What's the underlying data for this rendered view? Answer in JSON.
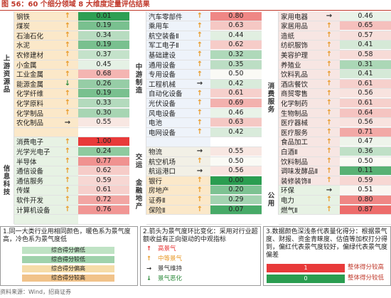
{
  "title": "图 56：60 个细分领域 8 大维度定量评估结果",
  "source": "资料来源：Wind，招商证券",
  "colors": {
    "score_scale": {
      "low": "#2a9d50",
      "high": "#e83a3a"
    },
    "arrow_up": "#e89a2a",
    "arrow_right": "#333333",
    "arrow_down": "#2e8b3d"
  },
  "panels": [
    {
      "groups": [
        {
          "label": "上\n游\n资\n源\n品",
          "rows": 13
        },
        {
          "label": "信\n息\n科\n技",
          "rows": 9
        }
      ],
      "rows": [
        {
          "name": "钢铁",
          "arrow": "up",
          "score": "0.01",
          "v": 0.01
        },
        {
          "name": "煤炭",
          "arrow": "up",
          "score": "0.19",
          "v": 0.19
        },
        {
          "name": "石油石化",
          "arrow": "up",
          "score": "0.34",
          "v": 0.34
        },
        {
          "name": "水泥",
          "arrow": "up",
          "score": "0.19",
          "v": 0.19
        },
        {
          "name": "农修建材",
          "arrow": "up",
          "score": "0.37",
          "v": 0.37
        },
        {
          "name": "小金属",
          "arrow": "up",
          "score": "0.45",
          "v": 0.45
        },
        {
          "name": "工业金属",
          "arrow": "up",
          "score": "0.68",
          "v": 0.68
        },
        {
          "name": "能源金属",
          "arrow": "down",
          "score": "0.26",
          "v": 0.26
        },
        {
          "name": "化学纤维",
          "arrow": "up",
          "score": "0.19",
          "v": 0.19
        },
        {
          "name": "化学原料",
          "arrow": "up",
          "score": "0.33",
          "v": 0.33
        },
        {
          "name": "化学制品",
          "arrow": "up",
          "score": "0.30",
          "v": 0.3
        },
        {
          "name": "农化制品",
          "arrow": "right",
          "score": "0.55",
          "v": 0.55
        },
        {
          "name": "",
          "arrow": "",
          "score": "",
          "v": null
        },
        {
          "name": "消费电子",
          "arrow": "up",
          "score": "1.00",
          "v": 1.0
        },
        {
          "name": "光学光电子",
          "arrow": "up",
          "score": "0.24",
          "v": 0.24
        },
        {
          "name": "半导体",
          "arrow": "up",
          "score": "0.77",
          "v": 0.77
        },
        {
          "name": "通信设备",
          "arrow": "up",
          "score": "0.62",
          "v": 0.62
        },
        {
          "name": "通信服务",
          "arrow": "up",
          "score": "0.59",
          "v": 0.59
        },
        {
          "name": "传媒",
          "arrow": "up",
          "score": "0.61",
          "v": 0.61
        },
        {
          "name": "软件开发",
          "arrow": "up",
          "score": "0.72",
          "v": 0.72
        },
        {
          "name": "计算机设备",
          "arrow": "up",
          "score": "0.76",
          "v": 0.76
        },
        {
          "name": "",
          "arrow": "",
          "score": "",
          "v": null
        }
      ]
    },
    {
      "groups": [
        {
          "label": "中\n游\n制\n造",
          "rows": 14
        },
        {
          "label": "交\n运",
          "rows": 3
        },
        {
          "label": "金\n融\n地\n产",
          "rows": 4
        }
      ],
      "rows": [
        {
          "name": "汽车零部件",
          "arrow": "up",
          "score": "0.80",
          "v": 0.8
        },
        {
          "name": "乘用车",
          "arrow": "up",
          "score": "0.63",
          "v": 0.63
        },
        {
          "name": "航空装备Ⅱ",
          "arrow": "up",
          "score": "0.44",
          "v": 0.44
        },
        {
          "name": "军工电子Ⅱ",
          "arrow": "up",
          "score": "0.62",
          "v": 0.62
        },
        {
          "name": "基础建设",
          "arrow": "up",
          "score": "0.32",
          "v": 0.32
        },
        {
          "name": "通用设备",
          "arrow": "up",
          "score": "0.35",
          "v": 0.35
        },
        {
          "name": "专用设备",
          "arrow": "up",
          "score": "0.50",
          "v": 0.5
        },
        {
          "name": "工程机械",
          "arrow": "right",
          "score": "0.42",
          "v": 0.42
        },
        {
          "name": "自动化设备",
          "arrow": "up",
          "score": "0.61",
          "v": 0.61
        },
        {
          "name": "光伏设备",
          "arrow": "up",
          "score": "0.69",
          "v": 0.69
        },
        {
          "name": "风电设备",
          "arrow": "up",
          "score": "0.46",
          "v": 0.46
        },
        {
          "name": "电池",
          "arrow": "up",
          "score": "0.63",
          "v": 0.63
        },
        {
          "name": "电网设备",
          "arrow": "up",
          "score": "0.42",
          "v": 0.42
        },
        {
          "name": "",
          "arrow": "",
          "score": "",
          "v": null
        },
        {
          "name": "物流",
          "arrow": "right",
          "score": "0.55",
          "v": 0.55
        },
        {
          "name": "航空机场",
          "arrow": "up",
          "score": "0.50",
          "v": 0.5
        },
        {
          "name": "航运港口",
          "arrow": "right",
          "score": "0.56",
          "v": 0.56
        },
        {
          "name": "银行",
          "arrow": "up",
          "score": "0.00",
          "v": 0.0
        },
        {
          "name": "房地产",
          "arrow": "up",
          "score": "0.20",
          "v": 0.2
        },
        {
          "name": "证券Ⅱ",
          "arrow": "up",
          "score": "0.29",
          "v": 0.29
        },
        {
          "name": "保险Ⅱ",
          "arrow": "up",
          "score": "0.07",
          "v": 0.07
        },
        {
          "name": "",
          "arrow": "",
          "score": "",
          "v": null
        }
      ]
    },
    {
      "groups": [
        {
          "label": "消\n费\n服\n务",
          "rows": 18
        },
        {
          "label": "公\n用",
          "rows": 3
        }
      ],
      "rows": [
        {
          "name": "家用电器",
          "arrow": "right",
          "score": "0.46",
          "v": 0.46
        },
        {
          "name": "家居用品",
          "arrow": "up",
          "score": "0.65",
          "v": 0.65
        },
        {
          "name": "造纸",
          "arrow": "up",
          "score": "0.57",
          "v": 0.57
        },
        {
          "name": "纺织服饰",
          "arrow": "up",
          "score": "0.41",
          "v": 0.41
        },
        {
          "name": "美容护理",
          "arrow": "up",
          "score": "0.58",
          "v": 0.58
        },
        {
          "name": "养殖业",
          "arrow": "up",
          "score": "0.31",
          "v": 0.31
        },
        {
          "name": "饮料乳品",
          "arrow": "up",
          "score": "0.41",
          "v": 0.41
        },
        {
          "name": "酒店餐饮",
          "arrow": "up",
          "score": "0.61",
          "v": 0.61
        },
        {
          "name": "商贸零售",
          "arrow": "up",
          "score": "0.56",
          "v": 0.56
        },
        {
          "name": "化学制药",
          "arrow": "up",
          "score": "0.61",
          "v": 0.61
        },
        {
          "name": "生物制品",
          "arrow": "up",
          "score": "0.64",
          "v": 0.64
        },
        {
          "name": "医疗器械",
          "arrow": "up",
          "score": "0.56",
          "v": 0.56
        },
        {
          "name": "医疗服务",
          "arrow": "up",
          "score": "0.71",
          "v": 0.71
        },
        {
          "name": "食品加工",
          "arrow": "up",
          "score": "0.47",
          "v": 0.47
        },
        {
          "name": "白酒Ⅱ",
          "arrow": "up",
          "score": "0.36",
          "v": 0.36
        },
        {
          "name": "饮料制品",
          "arrow": "up",
          "score": "0.50",
          "v": 0.5
        },
        {
          "name": "调味发酵品Ⅱ",
          "arrow": "up",
          "score": "0.11",
          "v": 0.11
        },
        {
          "name": "装修装饰Ⅱ",
          "arrow": "up",
          "score": "0.59",
          "v": 0.59
        },
        {
          "name": "环保",
          "arrow": "right",
          "score": "0.51",
          "v": 0.51
        },
        {
          "name": "电力",
          "arrow": "up",
          "score": "0.80",
          "v": 0.8
        },
        {
          "name": "燃气Ⅱ",
          "arrow": "up",
          "score": "0.87",
          "v": 0.87
        },
        {
          "name": "",
          "arrow": "",
          "score": "",
          "v": null
        }
      ]
    }
  ],
  "legend": {
    "note1": "1.同一大类行业用相同颜色，暖色系为景气度高，冷色系为景气度低",
    "note1_items": [
      "综合得分偏低",
      "综合得分较低",
      "综合得分偏高",
      "综合得分较高"
    ],
    "note2": "2.箭头为景气度环比变化：采用对行业超额收益有正向驱动的中观指标",
    "note2_items": [
      {
        "arrow": "up",
        "text": "高景气",
        "color": "#e83a3a"
      },
      {
        "arrow": "up",
        "text": "中等景气",
        "color": "#e89a2a"
      },
      {
        "arrow": "right",
        "text": "景气维持",
        "color": "#333333"
      },
      {
        "arrow": "down",
        "text": "景气恶化",
        "color": "#2e8b3d"
      }
    ],
    "note3": "3.数据颜色深浅条代表量化得分：根据景气度、财报、资金青睐度、估值等加权打分得到，偏红代表景气度较好，偏绿代表景气度偏差",
    "note3_items": [
      {
        "value": "1",
        "label": "整体得分较高"
      },
      {
        "value": "0",
        "label": "整体得分较低"
      }
    ]
  }
}
